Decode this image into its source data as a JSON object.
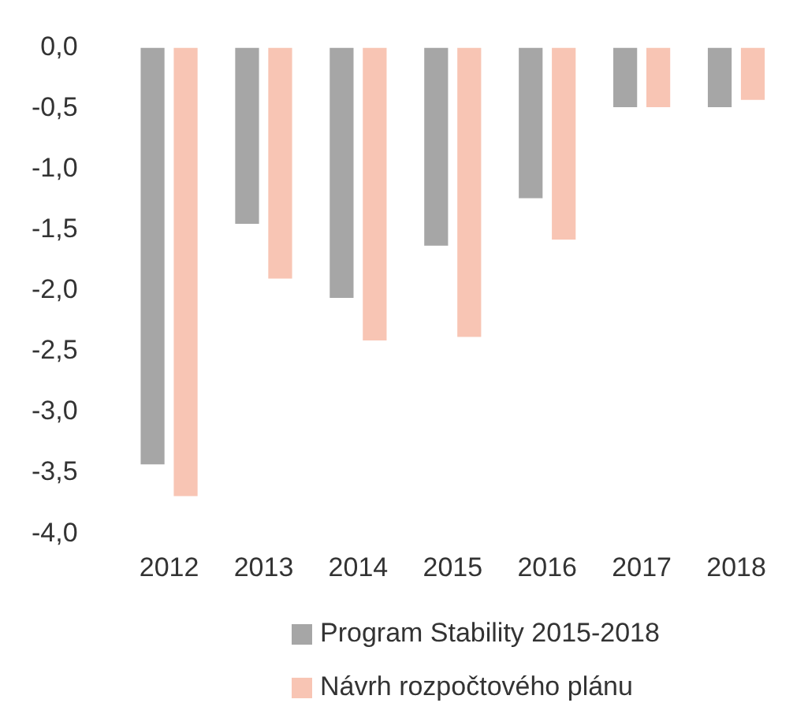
{
  "chart_data": {
    "type": "bar",
    "categories": [
      "2012",
      "2013",
      "2014",
      "2015",
      "2016",
      "2017",
      "2018"
    ],
    "series": [
      {
        "name": "Program Stability 2015-2018",
        "color": "#a6a6a6",
        "values": [
          -3.43,
          -1.45,
          -2.06,
          -1.63,
          -1.24,
          -0.49,
          -0.49
        ]
      },
      {
        "name": "Návrh rozpočtového plánu",
        "color": "#f8c5b4",
        "values": [
          -3.69,
          -1.9,
          -2.41,
          -2.38,
          -1.58,
          -0.49,
          -0.43
        ]
      }
    ],
    "ylim": [
      -4,
      0
    ],
    "yticks": [
      {
        "value": 0,
        "label": "0,0"
      },
      {
        "value": -0.5,
        "label": "-0,5"
      },
      {
        "value": -1,
        "label": "-1,0"
      },
      {
        "value": -1.5,
        "label": "-1,5"
      },
      {
        "value": -2,
        "label": "-2,0"
      },
      {
        "value": -2.5,
        "label": "-2,5"
      },
      {
        "value": -3,
        "label": "-3,0"
      },
      {
        "value": -3.5,
        "label": "-3,5"
      },
      {
        "value": -4,
        "label": "-4,0"
      }
    ],
    "grid": false,
    "legend": "bottom"
  }
}
